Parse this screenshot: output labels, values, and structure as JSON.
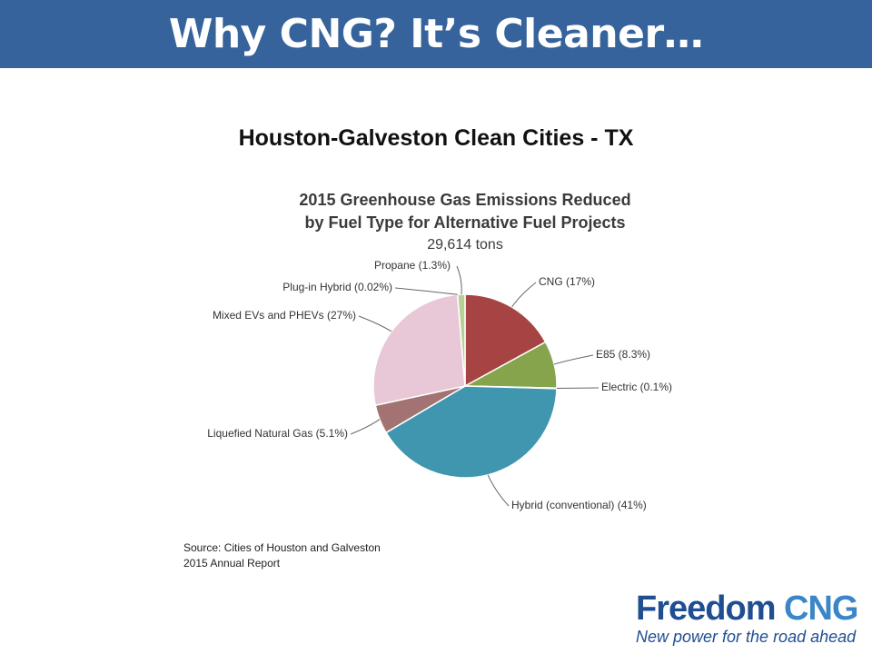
{
  "header": {
    "title": "Why CNG? It’s Cleaner…"
  },
  "subtitle": "Houston-Galveston Clean Cities - TX",
  "chart_data": {
    "type": "pie",
    "title_lines": [
      "2015 Greenhouse Gas Emissions Reduced",
      "by Fuel Type for Alternative Fuel Projects"
    ],
    "total_label": "29,614 tons",
    "slices": [
      {
        "label": "CNG (17%)",
        "value": 17,
        "color": "#a64444"
      },
      {
        "label": "E85 (8.3%)",
        "value": 8.3,
        "color": "#86a44c"
      },
      {
        "label": "Electric (0.1%)",
        "value": 0.1,
        "color": "#6b5b95"
      },
      {
        "label": "Hybrid (conventional) (41%)",
        "value": 41,
        "color": "#3f96ae"
      },
      {
        "label": "Liquefied Natural Gas (5.1%)",
        "value": 5.1,
        "color": "#a37373"
      },
      {
        "label": "Mixed EVs and PHEVs (27%)",
        "value": 27,
        "color": "#e8c7d6"
      },
      {
        "label": "Plug-in Hybrid (0.02%)",
        "value": 0.02,
        "color": "#c0504d"
      },
      {
        "label": "Propane (1.3%)",
        "value": 1.3,
        "color": "#b8cf95"
      }
    ]
  },
  "source": {
    "line1": "Source: Cities of Houston and Galveston",
    "line2": "2015 Annual Report"
  },
  "logo": {
    "name_part1": "Freedom",
    "name_part2": "CNG",
    "tagline": "New power for the road ahead"
  }
}
